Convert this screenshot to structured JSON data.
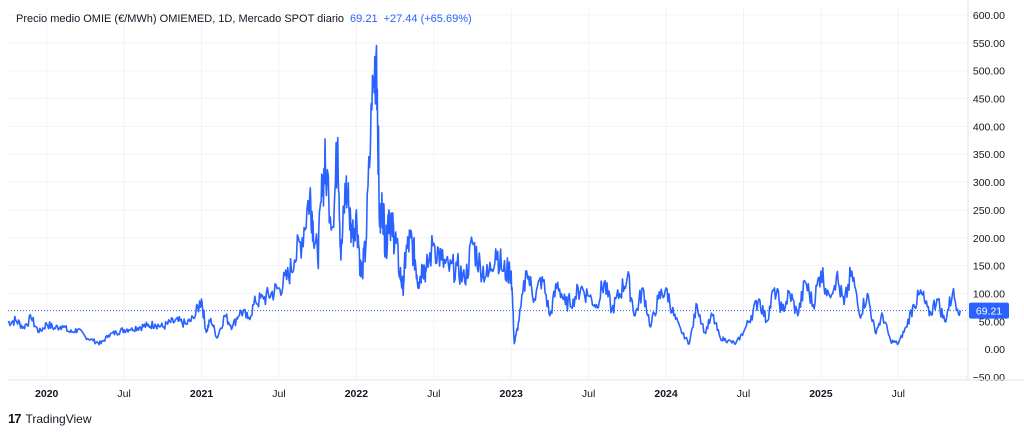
{
  "legend": {
    "title": "Precio medio OMIE (€/MWh) OMIEMED, 1D, Mercado SPOT diario",
    "last": "69.21",
    "change": "+27.44 (+65.69%)"
  },
  "brand": {
    "logo": "17",
    "name": "TradingView"
  },
  "colors": {
    "line": "#2962ff",
    "grid": "#f0f3fa",
    "text": "#131722"
  },
  "chart_data": {
    "type": "line",
    "title": "Precio medio OMIE (€/MWh) OMIEMED, 1D, Mercado SPOT diario",
    "xlabel": "",
    "ylabel": "",
    "ylim": [
      -50,
      600
    ],
    "yticks": [
      "600.00",
      "550.00",
      "500.00",
      "450.00",
      "400.00",
      "350.00",
      "300.00",
      "250.00",
      "200.00",
      "150.00",
      "100.00",
      "50.00",
      "0.00",
      "−50.00"
    ],
    "ytick_values": [
      600,
      550,
      500,
      450,
      400,
      350,
      300,
      250,
      200,
      150,
      100,
      50,
      0,
      -50
    ],
    "xticks": [
      {
        "label": "2020",
        "t": 2020.0,
        "bold": true
      },
      {
        "label": "Jul",
        "t": 2020.5,
        "bold": false
      },
      {
        "label": "2021",
        "t": 2021.0,
        "bold": true
      },
      {
        "label": "Jul",
        "t": 2021.5,
        "bold": false
      },
      {
        "label": "2022",
        "t": 2022.0,
        "bold": true
      },
      {
        "label": "Jul",
        "t": 2022.5,
        "bold": false
      },
      {
        "label": "2023",
        "t": 2023.0,
        "bold": true
      },
      {
        "label": "Jul",
        "t": 2023.5,
        "bold": false
      },
      {
        "label": "2024",
        "t": 2024.0,
        "bold": true
      },
      {
        "label": "Jul",
        "t": 2024.5,
        "bold": false
      },
      {
        "label": "2025",
        "t": 2025.0,
        "bold": true
      },
      {
        "label": "Jul",
        "t": 2025.5,
        "bold": false
      }
    ],
    "reference_line": 69.21,
    "grid": true,
    "series": [
      {
        "x": [
          2019.75,
          2019.8,
          2019.85,
          2019.9,
          2019.95,
          2020.0,
          2020.05,
          2020.1,
          2020.15,
          2020.2,
          2020.25,
          2020.3,
          2020.35,
          2020.4,
          2020.45,
          2020.5,
          2020.55,
          2020.6,
          2020.65,
          2020.7,
          2020.75,
          2020.8,
          2020.85,
          2020.9,
          2020.95,
          2021.0,
          2021.03,
          2021.06,
          2021.1,
          2021.15,
          2021.2,
          2021.25,
          2021.3,
          2021.35,
          2021.4,
          2021.45,
          2021.5,
          2021.55,
          2021.6,
          2021.65,
          2021.7,
          2021.72,
          2021.75,
          2021.78,
          2021.8,
          2021.85,
          2021.88,
          2021.9,
          2021.93,
          2021.95,
          2021.97,
          2022.0,
          2022.03,
          2022.06,
          2022.1,
          2022.13,
          2022.15,
          2022.17,
          2022.19,
          2022.21,
          2022.23,
          2022.25,
          2022.28,
          2022.3,
          2022.32,
          2022.35,
          2022.38,
          2022.4,
          2022.43,
          2022.45,
          2022.5,
          2022.55,
          2022.6,
          2022.65,
          2022.7,
          2022.75,
          2022.8,
          2022.85,
          2022.9,
          2022.95,
          2023.0,
          2023.02,
          2023.05,
          2023.1,
          2023.15,
          2023.2,
          2023.25,
          2023.3,
          2023.35,
          2023.4,
          2023.45,
          2023.5,
          2023.55,
          2023.6,
          2023.65,
          2023.7,
          2023.75,
          2023.8,
          2023.85,
          2023.9,
          2023.95,
          2024.0,
          2024.05,
          2024.1,
          2024.15,
          2024.2,
          2024.25,
          2024.3,
          2024.35,
          2024.4,
          2024.45,
          2024.5,
          2024.55,
          2024.6,
          2024.65,
          2024.7,
          2024.75,
          2024.8,
          2024.85,
          2024.9,
          2024.95,
          2025.0,
          2025.05,
          2025.1,
          2025.15,
          2025.2,
          2025.25,
          2025.3,
          2025.35,
          2025.4,
          2025.45,
          2025.5,
          2025.55,
          2025.6,
          2025.65,
          2025.7,
          2025.75,
          2025.8,
          2025.85,
          2025.9
        ],
        "values": [
          48,
          52,
          40,
          55,
          30,
          45,
          38,
          42,
          30,
          35,
          22,
          15,
          10,
          25,
          30,
          35,
          38,
          40,
          42,
          45,
          40,
          48,
          50,
          45,
          55,
          90,
          30,
          55,
          20,
          60,
          40,
          70,
          55,
          85,
          90,
          100,
          110,
          125,
          160,
          200,
          280,
          230,
          160,
          290,
          330,
          220,
          380,
          160,
          290,
          260,
          200,
          250,
          130,
          180,
          430,
          545,
          220,
          260,
          180,
          250,
          220,
          200,
          140,
          110,
          170,
          200,
          160,
          120,
          150,
          140,
          190,
          160,
          140,
          150,
          120,
          190,
          150,
          130,
          180,
          140,
          140,
          10,
          50,
          140,
          90,
          130,
          60,
          120,
          80,
          90,
          110,
          95,
          80,
          120,
          70,
          100,
          130,
          60,
          110,
          40,
          90,
          110,
          60,
          30,
          10,
          80,
          30,
          60,
          20,
          15,
          10,
          30,
          60,
          90,
          50,
          110,
          70,
          100,
          60,
          120,
          80,
          140,
          100,
          130,
          80,
          140,
          60,
          100,
          30,
          60,
          15,
          10,
          40,
          80,
          100,
          60,
          90,
          50,
          100,
          69.21
        ]
      }
    ]
  }
}
